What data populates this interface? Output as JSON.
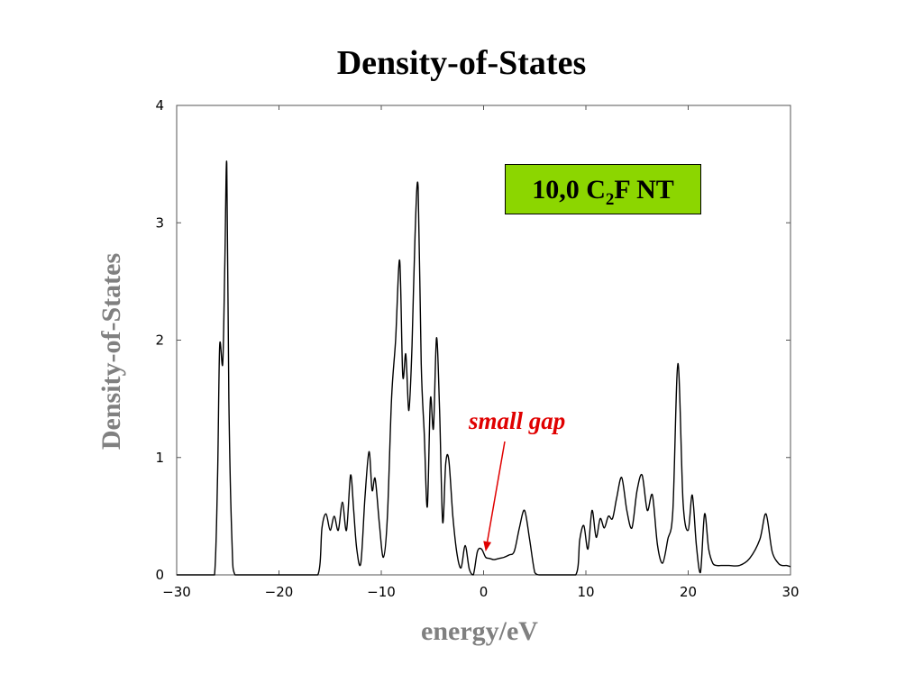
{
  "slide": {
    "title": "Density-of-States"
  },
  "chart_data": {
    "type": "line",
    "title": "Density-of-States",
    "xlabel": "energy/eV",
    "ylabel": "Density-of-States",
    "xlim": [
      -30,
      30
    ],
    "ylim": [
      0,
      4
    ],
    "x_ticks": [
      "−30",
      "−20",
      "−10",
      "0",
      "10",
      "20",
      "30"
    ],
    "y_ticks": [
      "0",
      "1",
      "2",
      "3",
      "4"
    ],
    "grid": false,
    "line_color": "#000000",
    "series_label": {
      "main": "10,0 C",
      "subscript": "2",
      "suffix": "F NT",
      "box_color": "#8cd600"
    },
    "annotation": {
      "text": "small gap",
      "color": "#e00000",
      "points_to_x": 0.2,
      "points_to_y": 0.2
    },
    "x": [
      -30,
      -27,
      -26.3,
      -26.0,
      -25.8,
      -25.5,
      -25.3,
      -25.1,
      -24.9,
      -24.6,
      -24.3,
      -23,
      -18,
      -16.2,
      -15.8,
      -15.4,
      -15.0,
      -14.6,
      -14.2,
      -13.8,
      -13.4,
      -13.0,
      -12.7,
      -12.4,
      -12.0,
      -11.6,
      -11.2,
      -10.9,
      -10.6,
      -10.2,
      -9.8,
      -9.4,
      -9.0,
      -8.6,
      -8.2,
      -7.9,
      -7.6,
      -7.3,
      -7.0,
      -6.7,
      -6.4,
      -6.1,
      -5.8,
      -5.5,
      -5.2,
      -4.9,
      -4.6,
      -4.3,
      -4.0,
      -3.7,
      -3.4,
      -3.0,
      -2.6,
      -2.2,
      -1.8,
      -1.4,
      -1.0,
      -0.6,
      -0.2,
      0.2,
      0.6,
      1.0,
      1.5,
      2.0,
      2.5,
      3.0,
      3.5,
      4.0,
      4.5,
      5.0,
      5.4,
      5.8,
      6.2,
      6.6,
      7.0,
      9.0,
      9.4,
      9.8,
      10.2,
      10.6,
      11.0,
      11.4,
      11.8,
      12.2,
      12.6,
      13.0,
      13.5,
      14.0,
      14.5,
      15.0,
      15.5,
      16.0,
      16.5,
      17.0,
      17.5,
      18.0,
      18.5,
      19.0,
      19.5,
      20.0,
      20.4,
      20.8,
      21.2,
      21.6,
      22.0,
      22.4,
      22.8,
      23.2,
      23.6,
      24.0,
      25.0,
      26.0,
      27.0,
      27.6,
      28.2,
      28.8,
      29.2,
      29.6,
      30.0
    ],
    "y": [
      0,
      0,
      0,
      0.85,
      1.95,
      1.8,
      2.6,
      3.5,
      1.5,
      0.3,
      0,
      0,
      0,
      0,
      0.4,
      0.52,
      0.38,
      0.5,
      0.38,
      0.62,
      0.38,
      0.85,
      0.55,
      0.22,
      0.1,
      0.65,
      1.05,
      0.72,
      0.82,
      0.45,
      0.15,
      0.5,
      1.5,
      2.0,
      2.68,
      1.7,
      1.88,
      1.4,
      1.95,
      2.9,
      3.3,
      1.8,
      1.2,
      0.58,
      1.5,
      1.25,
      2.02,
      1.4,
      0.45,
      0.95,
      0.98,
      0.5,
      0.18,
      0.06,
      0.25,
      0.05,
      0.0,
      0.2,
      0.22,
      0.15,
      0.14,
      0.13,
      0.14,
      0.15,
      0.17,
      0.2,
      0.4,
      0.55,
      0.3,
      0.02,
      0,
      0,
      0,
      0,
      0,
      0,
      0.3,
      0.42,
      0.22,
      0.55,
      0.32,
      0.48,
      0.4,
      0.5,
      0.48,
      0.65,
      0.83,
      0.55,
      0.4,
      0.72,
      0.85,
      0.55,
      0.68,
      0.25,
      0.1,
      0.3,
      0.55,
      1.8,
      0.62,
      0.38,
      0.68,
      0.25,
      0.02,
      0.52,
      0.22,
      0.1,
      0.08,
      0.08,
      0.08,
      0.08,
      0.08,
      0.14,
      0.3,
      0.52,
      0.2,
      0.1,
      0.08,
      0.08,
      0.07
    ]
  }
}
